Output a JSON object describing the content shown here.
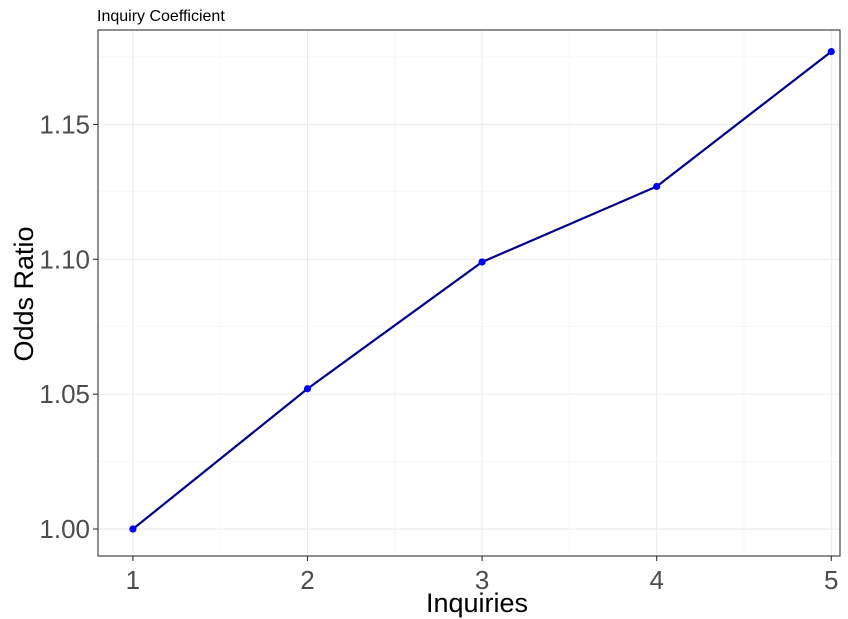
{
  "chart_data": {
    "type": "line",
    "title": "Inquiry Coefficient",
    "xlabel": "Inquiries",
    "ylabel": "Odds Ratio",
    "x": [
      1,
      2,
      3,
      4,
      5
    ],
    "series": [
      {
        "values": [
          1.0,
          1.052,
          1.099,
          1.127,
          1.177
        ]
      }
    ],
    "xlim": [
      0.8,
      5.05
    ],
    "ylim": [
      0.99,
      1.185
    ],
    "x_ticks": [
      "1",
      "2",
      "3",
      "4",
      "5"
    ],
    "y_ticks": [
      "1.00",
      "1.05",
      "1.10",
      "1.15"
    ],
    "grid": true,
    "line_color": "#00008b",
    "point_color": "#0000ff"
  }
}
